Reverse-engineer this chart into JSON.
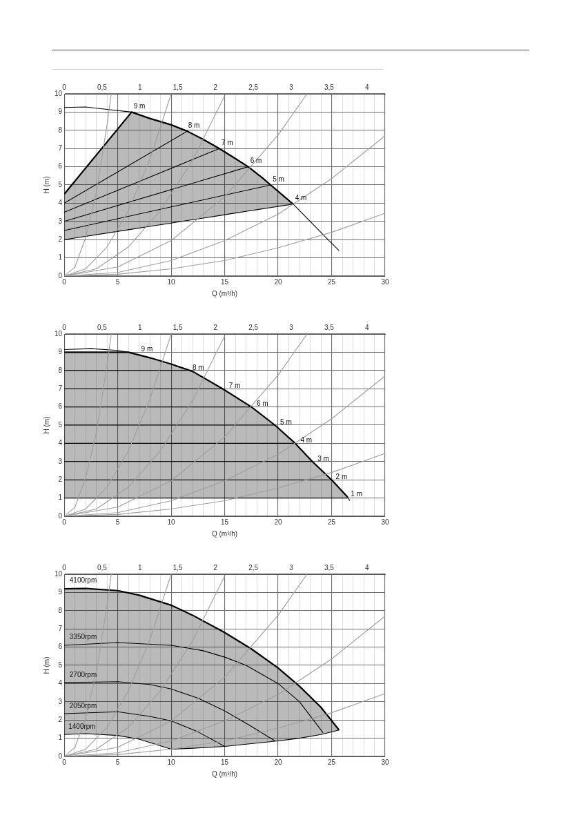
{
  "chart_data": [
    {
      "type": "line",
      "xlabel": "Q (m³/h)",
      "ylabel": "H (m)",
      "xlim": [
        0,
        30
      ],
      "ylim": [
        0,
        10
      ],
      "grid": true,
      "xticks": [
        0,
        {
          "value": 1,
          "label": null
        },
        {
          "value": 2,
          "label": null
        },
        {
          "value": 3,
          "label": null
        },
        {
          "value": 4,
          "label": null
        },
        5,
        {
          "value": 6,
          "label": null
        },
        {
          "value": 7,
          "label": null
        },
        {
          "value": 8,
          "label": null
        },
        {
          "value": 9,
          "label": null
        },
        10,
        {
          "value": 11,
          "label": null
        },
        {
          "value": 12,
          "label": null
        },
        {
          "value": 13,
          "label": null
        },
        {
          "value": 14,
          "label": null
        },
        15,
        {
          "value": 16,
          "label": null
        },
        {
          "value": 17,
          "label": null
        },
        {
          "value": 18,
          "label": null
        },
        {
          "value": 19,
          "label": null
        },
        20,
        {
          "value": 21,
          "label": null
        },
        {
          "value": 22,
          "label": null
        },
        {
          "value": 23,
          "label": null
        },
        {
          "value": 24,
          "label": null
        },
        25,
        {
          "value": 26,
          "label": null
        },
        {
          "value": 27,
          "label": null
        },
        {
          "value": 28,
          "label": null
        },
        {
          "value": 29,
          "label": null
        },
        30
      ],
      "yticks": [
        0,
        1,
        2,
        3,
        4,
        5,
        6,
        7,
        8,
        9,
        10
      ],
      "x2lim": [
        0,
        4.24
      ],
      "x2ticks": [
        0,
        {
          "value": 0.5,
          "label": "0,5"
        },
        1,
        {
          "value": 1.5,
          "label": "1,5"
        },
        2,
        {
          "value": 2.5,
          "label": "2,5"
        },
        3,
        {
          "value": 3.5,
          "label": "3,5"
        },
        4
      ],
      "series": [
        {
          "color": "#000000",
          "x": [
            0,
            6.3,
            8,
            10,
            11.5,
            13,
            14.5,
            16,
            17.2,
            18.5,
            19.3,
            20.5,
            21.4
          ],
          "values": [
            4.5,
            9.0,
            8.65,
            8.3,
            7.95,
            7.5,
            7.0,
            6.45,
            6.0,
            5.4,
            5.0,
            4.4,
            3.95
          ],
          "upper": [
            4.5,
            9.0,
            8.65,
            8.3,
            7.95,
            7.5,
            7.0,
            6.45,
            6.0,
            5.4,
            5.0,
            4.4,
            3.95
          ],
          "lower": [
            2,
            2.57,
            2.73,
            2.91,
            3.05,
            3.18,
            3.32,
            3.46,
            3.57,
            3.69,
            3.76,
            3.87,
            3.95
          ]
        },
        {
          "color": "#9e9e9e",
          "x": [
            0,
            1,
            2,
            3,
            4,
            4.4
          ],
          "values": [
            0,
            0.5,
            2.1,
            4.6,
            8.3,
            10
          ]
        },
        {
          "color": "#9e9e9e",
          "x": [
            0,
            2,
            4,
            6,
            8,
            10
          ],
          "values": [
            0,
            0.4,
            1.6,
            3.6,
            6.4,
            10
          ]
        },
        {
          "color": "#9e9e9e",
          "x": [
            0,
            3,
            6,
            9,
            12,
            15
          ],
          "values": [
            0,
            0.4,
            1.6,
            3.6,
            6.35,
            9.9
          ]
        },
        {
          "color": "#9e9e9e",
          "x": [
            0,
            5,
            10,
            15,
            20,
            22.7
          ],
          "values": [
            0,
            0.5,
            1.95,
            4.35,
            7.75,
            10
          ]
        },
        {
          "color": "#9e9e9e",
          "x": [
            0,
            5,
            10,
            15,
            20,
            25,
            30
          ],
          "values": [
            0,
            0.2,
            0.85,
            1.95,
            3.4,
            5.35,
            7.7
          ]
        },
        {
          "color": "#9e9e9e",
          "x": [
            0,
            5,
            10,
            15,
            20,
            25,
            30
          ],
          "values": [
            0,
            0.1,
            0.4,
            0.85,
            1.55,
            2.4,
            3.45
          ]
        },
        {
          "color": "#000000",
          "x": [
            0,
            2,
            4,
            6.3,
            8,
            10,
            11.5,
            13,
            14.5,
            16,
            17.2,
            18.5,
            19.3,
            20.5,
            21.4,
            23,
            24.5,
            25.7
          ],
          "values": [
            9.25,
            9.28,
            9.15,
            9.0,
            8.65,
            8.3,
            7.95,
            7.5,
            7.0,
            6.45,
            6.0,
            5.4,
            5.0,
            4.4,
            3.95,
            3.0,
            2.1,
            1.4
          ]
        },
        {
          "color": "#000000",
          "x": [
            0,
            6.3,
            8,
            10,
            11.5,
            13,
            14.5,
            16,
            17.2,
            18.5,
            19.3,
            20.5,
            21.4
          ],
          "values": [
            2,
            2.57,
            2.73,
            2.91,
            3.05,
            3.18,
            3.32,
            3.46,
            3.57,
            3.69,
            3.76,
            3.87,
            3.95
          ]
        },
        {
          "color": "#000000",
          "x": [
            0,
            11.5
          ],
          "values": [
            4,
            7.95
          ]
        },
        {
          "color": "#000000",
          "x": [
            0,
            14.5
          ],
          "values": [
            3.5,
            7.0
          ]
        },
        {
          "color": "#000000",
          "x": [
            0,
            17.2
          ],
          "values": [
            3,
            6
          ]
        },
        {
          "color": "#000000",
          "x": [
            0,
            19.3
          ],
          "values": [
            2.5,
            5.0
          ]
        }
      ],
      "annotations": [
        {
          "text": "9 m",
          "x": 6.3,
          "y": 9.0
        },
        {
          "text": "8 m",
          "x": 11.4,
          "y": 7.95
        },
        {
          "text": "7 m",
          "x": 14.5,
          "y": 7.0
        },
        {
          "text": "6 m",
          "x": 17.2,
          "y": 6.0
        },
        {
          "text": "5 m",
          "x": 19.3,
          "y": 5.0
        },
        {
          "text": "4 m",
          "x": 21.4,
          "y": 3.95
        }
      ]
    },
    {
      "type": "line",
      "xlabel": "Q (m³/h)",
      "ylabel": "H (m)",
      "xlim": [
        0,
        30
      ],
      "ylim": [
        0,
        10
      ],
      "grid": true,
      "xticks": [
        0,
        {
          "value": 1,
          "label": null
        },
        {
          "value": 2,
          "label": null
        },
        {
          "value": 3,
          "label": null
        },
        {
          "value": 4,
          "label": null
        },
        5,
        {
          "value": 6,
          "label": null
        },
        {
          "value": 7,
          "label": null
        },
        {
          "value": 8,
          "label": null
        },
        {
          "value": 9,
          "label": null
        },
        10,
        {
          "value": 11,
          "label": null
        },
        {
          "value": 12,
          "label": null
        },
        {
          "value": 13,
          "label": null
        },
        {
          "value": 14,
          "label": null
        },
        15,
        {
          "value": 16,
          "label": null
        },
        {
          "value": 17,
          "label": null
        },
        {
          "value": 18,
          "label": null
        },
        {
          "value": 19,
          "label": null
        },
        20,
        {
          "value": 21,
          "label": null
        },
        {
          "value": 22,
          "label": null
        },
        {
          "value": 23,
          "label": null
        },
        {
          "value": 24,
          "label": null
        },
        25,
        {
          "value": 26,
          "label": null
        },
        {
          "value": 27,
          "label": null
        },
        {
          "value": 28,
          "label": null
        },
        {
          "value": 29,
          "label": null
        },
        30
      ],
      "yticks": [
        0,
        1,
        2,
        3,
        4,
        5,
        6,
        7,
        8,
        9,
        10
      ],
      "x2lim": [
        0,
        4.24
      ],
      "x2ticks": [
        0,
        {
          "value": 0.5,
          "label": "0,5"
        },
        1,
        {
          "value": 1.5,
          "label": "1,5"
        },
        2,
        {
          "value": 2.5,
          "label": "2,5"
        },
        3,
        {
          "value": 3.5,
          "label": "3,5"
        },
        4
      ],
      "series": [
        {
          "color": "#000000",
          "x": [
            0,
            6,
            8,
            10,
            12,
            14.8,
            17.5,
            19.7,
            21.6,
            23.2,
            25,
            26.5
          ],
          "values": [
            9,
            9,
            8.7,
            8.35,
            7.95,
            7.0,
            6.0,
            5.0,
            4.0,
            3.0,
            2.0,
            1.05
          ],
          "upper": [
            9,
            9,
            8.7,
            8.35,
            7.95,
            7.0,
            6.0,
            5.0,
            4.0,
            3.0,
            2.0,
            1.05
          ],
          "lower": [
            1,
            1,
            1,
            1,
            1,
            1,
            1,
            1,
            1,
            1,
            1,
            1
          ]
        },
        {
          "color": "#9e9e9e",
          "x": [
            0,
            1,
            2,
            3,
            4,
            4.4
          ],
          "values": [
            0,
            0.5,
            2.1,
            4.6,
            8.3,
            10
          ]
        },
        {
          "color": "#9e9e9e",
          "x": [
            0,
            2,
            4,
            6,
            8,
            10
          ],
          "values": [
            0,
            0.4,
            1.6,
            3.6,
            6.4,
            10
          ]
        },
        {
          "color": "#9e9e9e",
          "x": [
            0,
            3,
            6,
            9,
            12,
            15
          ],
          "values": [
            0,
            0.4,
            1.6,
            3.6,
            6.35,
            9.9
          ]
        },
        {
          "color": "#9e9e9e",
          "x": [
            0,
            5,
            10,
            15,
            20,
            22.7
          ],
          "values": [
            0,
            0.5,
            1.95,
            4.35,
            7.75,
            10
          ]
        },
        {
          "color": "#9e9e9e",
          "x": [
            0,
            5,
            10,
            15,
            20,
            25,
            30
          ],
          "values": [
            0,
            0.2,
            0.85,
            1.95,
            3.4,
            5.35,
            7.7
          ]
        },
        {
          "color": "#9e9e9e",
          "x": [
            0,
            5,
            10,
            15,
            20,
            25,
            30
          ],
          "values": [
            0,
            0.1,
            0.4,
            0.85,
            1.55,
            2.4,
            3.45
          ]
        },
        {
          "color": "#000000",
          "x": [
            0,
            2.5,
            5,
            6
          ],
          "values": [
            9.15,
            9.2,
            9.1,
            9.0
          ]
        },
        {
          "color": "#000000",
          "x": [
            26.5,
            26.7
          ],
          "values": [
            1.05,
            0.85
          ]
        },
        {
          "color": "#000000",
          "x": [
            0,
            26.5
          ],
          "values": [
            1,
            1
          ]
        },
        {
          "color": "#000000",
          "x": [
            0,
            11.5
          ],
          "values": [
            8,
            8
          ]
        },
        {
          "color": "#000000",
          "x": [
            0,
            14.8
          ],
          "values": [
            7,
            7
          ]
        },
        {
          "color": "#000000",
          "x": [
            0,
            17.5
          ],
          "values": [
            6,
            6
          ]
        },
        {
          "color": "#000000",
          "x": [
            0,
            19.7
          ],
          "values": [
            5,
            5
          ]
        },
        {
          "color": "#000000",
          "x": [
            0,
            21.6
          ],
          "values": [
            4,
            4
          ]
        },
        {
          "color": "#000000",
          "x": [
            0,
            23.2
          ],
          "values": [
            3,
            3
          ]
        },
        {
          "color": "#000000",
          "x": [
            0,
            25
          ],
          "values": [
            2,
            2
          ]
        }
      ],
      "annotations": [
        {
          "text": "9 m",
          "x": 7.0,
          "y": 8.85
        },
        {
          "text": "8 m",
          "x": 11.8,
          "y": 7.85
        },
        {
          "text": "7 m",
          "x": 15.2,
          "y": 6.85
        },
        {
          "text": "6 m",
          "x": 17.8,
          "y": 5.85
        },
        {
          "text": "5 m",
          "x": 20.0,
          "y": 4.85
        },
        {
          "text": "4 m",
          "x": 21.9,
          "y": 3.85
        },
        {
          "text": "3 m",
          "x": 23.5,
          "y": 2.85
        },
        {
          "text": "2 m",
          "x": 25.2,
          "y": 1.85
        },
        {
          "text": "1 m",
          "x": 26.6,
          "y": 0.9
        }
      ]
    },
    {
      "type": "line",
      "xlabel": "Q (m³/h)",
      "ylabel": "H (m)",
      "xlim": [
        0,
        30
      ],
      "ylim": [
        0,
        10
      ],
      "grid": true,
      "xticks": [
        0,
        {
          "value": 1,
          "label": null
        },
        {
          "value": 2,
          "label": null
        },
        {
          "value": 3,
          "label": null
        },
        {
          "value": 4,
          "label": null
        },
        5,
        {
          "value": 6,
          "label": null
        },
        {
          "value": 7,
          "label": null
        },
        {
          "value": 8,
          "label": null
        },
        {
          "value": 9,
          "label": null
        },
        10,
        {
          "value": 11,
          "label": null
        },
        {
          "value": 12,
          "label": null
        },
        {
          "value": 13,
          "label": null
        },
        {
          "value": 14,
          "label": null
        },
        15,
        {
          "value": 16,
          "label": null
        },
        {
          "value": 17,
          "label": null
        },
        {
          "value": 18,
          "label": null
        },
        {
          "value": 19,
          "label": null
        },
        20,
        {
          "value": 21,
          "label": null
        },
        {
          "value": 22,
          "label": null
        },
        {
          "value": 23,
          "label": null
        },
        {
          "value": 24,
          "label": null
        },
        25,
        {
          "value": 26,
          "label": null
        },
        {
          "value": 27,
          "label": null
        },
        {
          "value": 28,
          "label": null
        },
        {
          "value": 29,
          "label": null
        },
        30
      ],
      "yticks": [
        0,
        1,
        2,
        3,
        4,
        5,
        6,
        7,
        8,
        9,
        10
      ],
      "x2lim": [
        0,
        4.24
      ],
      "x2ticks": [
        0,
        {
          "value": 0.5,
          "label": "0,5"
        },
        1,
        {
          "value": 1.5,
          "label": "1,5"
        },
        2,
        {
          "value": 2.5,
          "label": "2,5"
        },
        3,
        {
          "value": 3.5,
          "label": "3,5"
        },
        4
      ],
      "series": [
        {
          "color": "#000000",
          "x": [
            0,
            2,
            5,
            7,
            10,
            12,
            15,
            17.5,
            20,
            22,
            24,
            25.7
          ],
          "values": [
            9.2,
            9.22,
            9.1,
            8.85,
            8.3,
            7.75,
            6.8,
            5.9,
            4.85,
            3.85,
            2.7,
            1.45
          ],
          "upper": [
            9.2,
            9.22,
            9.1,
            8.85,
            8.3,
            7.75,
            6.8,
            5.9,
            4.85,
            3.85,
            2.7,
            1.45
          ],
          "lower": [
            1.2,
            1.25,
            1.15,
            0.95,
            0.4,
            0.45,
            0.55,
            0.7,
            0.85,
            1.0,
            1.2,
            1.45
          ]
        },
        {
          "color": "#9e9e9e",
          "x": [
            0,
            1,
            2,
            3,
            4,
            4.4
          ],
          "values": [
            0,
            0.5,
            2.1,
            4.6,
            8.3,
            10
          ]
        },
        {
          "color": "#9e9e9e",
          "x": [
            0,
            2,
            4,
            6,
            8,
            10
          ],
          "values": [
            0,
            0.4,
            1.6,
            3.6,
            6.4,
            10
          ]
        },
        {
          "color": "#9e9e9e",
          "x": [
            0,
            3,
            6,
            9,
            12,
            15
          ],
          "values": [
            0,
            0.4,
            1.6,
            3.6,
            6.35,
            9.9
          ]
        },
        {
          "color": "#9e9e9e",
          "x": [
            0,
            5,
            10,
            15,
            20,
            22.7
          ],
          "values": [
            0,
            0.5,
            1.95,
            4.35,
            7.75,
            10
          ]
        },
        {
          "color": "#9e9e9e",
          "x": [
            0,
            5,
            10,
            15,
            20,
            25,
            30
          ],
          "values": [
            0,
            0.2,
            0.85,
            1.95,
            3.4,
            5.35,
            7.7
          ]
        },
        {
          "color": "#9e9e9e",
          "x": [
            0,
            5,
            10,
            15,
            20,
            25,
            30
          ],
          "values": [
            0,
            0.1,
            0.4,
            0.85,
            1.55,
            2.4,
            3.45
          ]
        },
        {
          "color": "#000000",
          "x": [
            0,
            2,
            5,
            7,
            10,
            12,
            15,
            17.5,
            20,
            22,
            24,
            25.7
          ],
          "values": [
            1.2,
            1.25,
            1.15,
            0.95,
            0.4,
            0.45,
            0.55,
            0.7,
            0.85,
            1.0,
            1.2,
            1.45
          ]
        },
        {
          "color": "#000000",
          "x": [
            0,
            5,
            10,
            13,
            15,
            17,
            20,
            22,
            24.2
          ],
          "values": [
            6.1,
            6.25,
            6.1,
            5.8,
            5.45,
            5.0,
            4.0,
            3.0,
            1.3
          ]
        },
        {
          "color": "#000000",
          "x": [
            0,
            5,
            8,
            10,
            12.5,
            15,
            17.5,
            19.7
          ],
          "values": [
            4.05,
            4.1,
            3.95,
            3.7,
            3.2,
            2.5,
            1.65,
            0.85
          ]
        },
        {
          "color": "#000000",
          "x": [
            0,
            5,
            8,
            10,
            12.5,
            15
          ],
          "values": [
            2.35,
            2.45,
            2.2,
            1.95,
            1.35,
            0.55
          ]
        }
      ],
      "annotations": [
        {
          "text": "4100rpm",
          "x": 0.3,
          "y": 9.35
        },
        {
          "text": "3350rpm",
          "x": 0.3,
          "y": 6.25
        },
        {
          "text": "2700rpm",
          "x": 0.3,
          "y": 4.15
        },
        {
          "text": "2050rpm",
          "x": 0.3,
          "y": 2.45
        },
        {
          "text": "1400rpm",
          "x": 0.2,
          "y": 1.3
        }
      ]
    }
  ]
}
